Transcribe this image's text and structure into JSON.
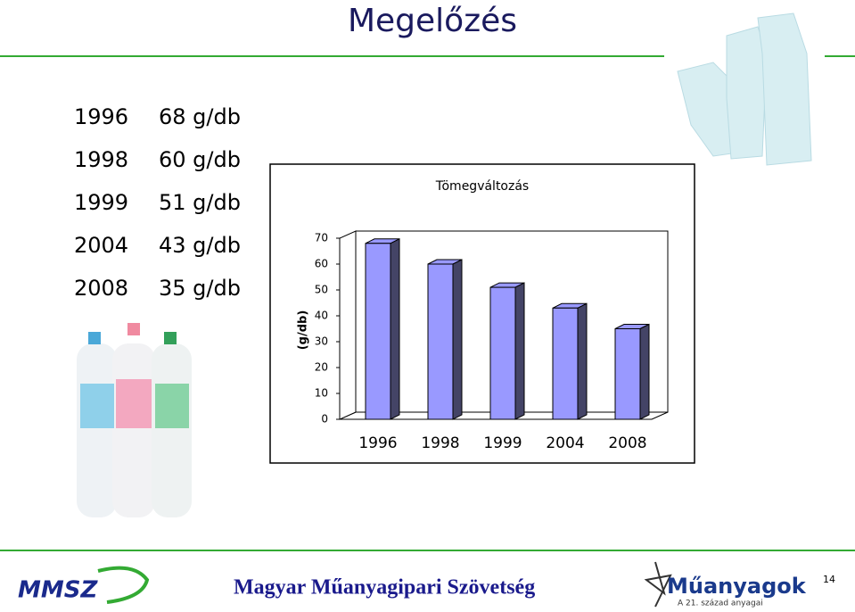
{
  "title": "Megelőzés",
  "list": [
    {
      "year": "1996",
      "weight": "68 g/db"
    },
    {
      "year": "1998",
      "weight": "60 g/db"
    },
    {
      "year": "1999",
      "weight": "51 g/db"
    },
    {
      "year": "2004",
      "weight": "43 g/db"
    },
    {
      "year": "2008",
      "weight": "35 g/db"
    }
  ],
  "chart_data": {
    "type": "bar",
    "title": "Tömegváltozás",
    "y_label": "(g/db)",
    "categories": [
      "1996",
      "1998",
      "1999",
      "2004",
      "2008"
    ],
    "values": [
      68,
      60,
      51,
      43,
      35
    ],
    "color": "#9999ff",
    "ylim": [
      0,
      70
    ],
    "yticks": [
      0,
      10,
      20,
      30,
      40,
      50,
      60,
      70
    ]
  },
  "footer": {
    "org": "Magyar Műanyagipari Szövetség",
    "logo_left": "MMSZ",
    "logo_right": "Műanyagok",
    "logo_right_sub": "A 21. század anyagai",
    "page": "14"
  }
}
